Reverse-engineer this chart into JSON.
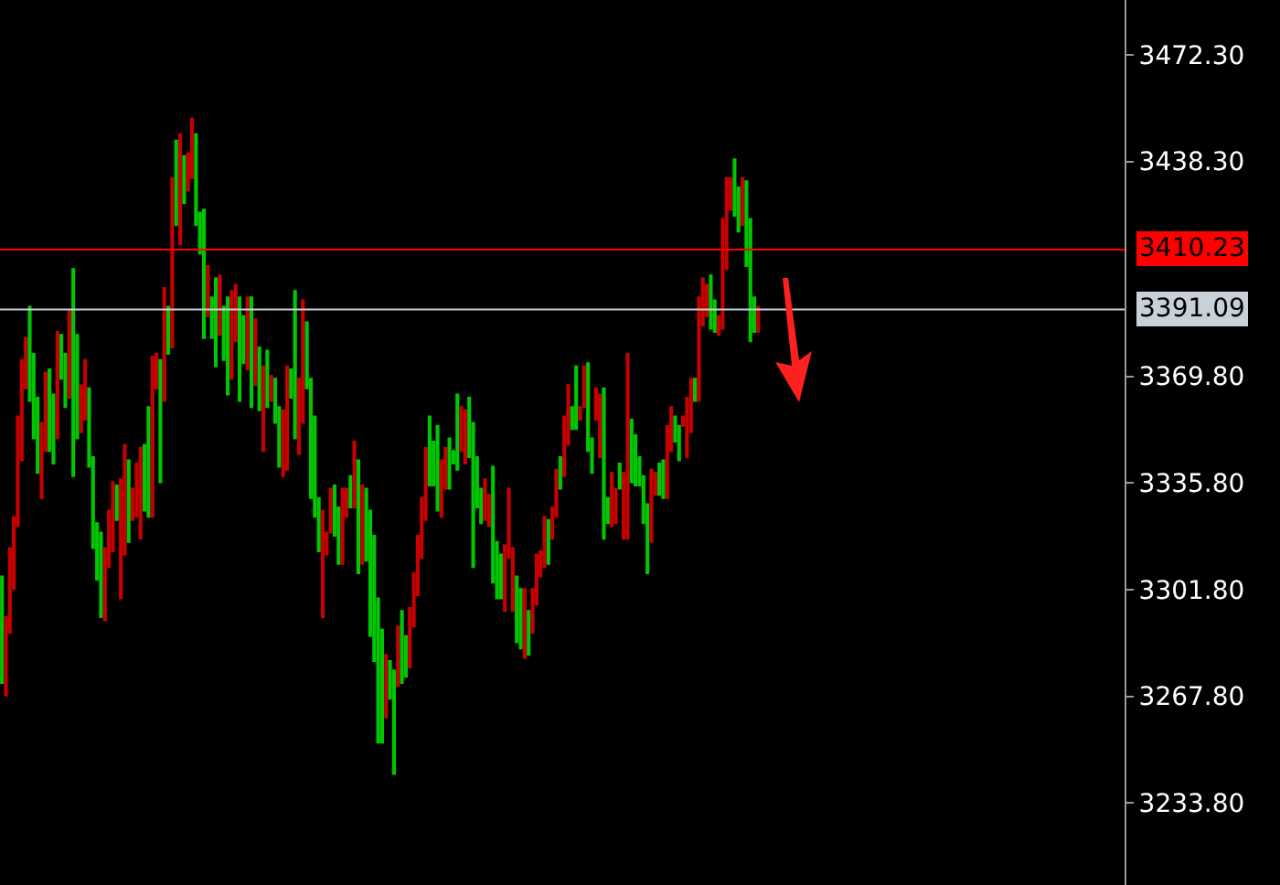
{
  "chart_data": {
    "type": "candlestick",
    "categories": [
      null,
      null,
      null,
      null,
      null,
      null,
      null,
      null,
      null,
      null,
      null,
      null,
      null,
      null,
      null,
      null,
      null,
      null,
      null,
      null,
      null,
      null,
      null,
      null,
      null,
      null,
      null,
      null,
      null,
      null,
      null,
      null,
      null,
      null,
      null,
      null,
      null,
      null,
      null,
      null,
      null,
      null,
      null,
      null,
      null,
      null,
      null,
      null,
      null,
      null,
      null,
      null,
      null,
      null,
      null,
      null,
      null,
      null,
      null,
      null,
      null,
      null,
      null,
      null,
      null,
      null,
      null,
      null,
      null,
      null,
      null,
      null,
      null,
      null,
      null,
      null,
      null,
      null,
      null,
      null,
      null,
      null,
      null,
      null,
      null,
      null,
      null,
      null,
      null,
      null,
      null,
      null,
      null,
      null,
      null,
      null,
      null,
      null,
      null,
      null,
      null,
      null,
      null,
      null,
      null,
      null,
      null,
      null,
      null,
      null,
      null,
      null,
      null,
      null,
      null,
      null,
      null,
      null,
      null,
      null,
      null,
      null,
      null,
      null,
      null,
      null,
      null,
      null,
      null,
      null,
      null,
      null,
      null,
      null,
      null,
      null,
      null,
      null,
      null,
      null,
      null,
      null,
      null,
      null,
      null,
      null,
      null,
      null,
      null,
      null,
      null,
      null,
      null,
      null,
      null,
      null,
      null,
      null,
      null,
      null,
      null,
      null,
      null,
      null,
      null,
      null,
      null,
      null,
      null,
      null,
      null,
      null,
      null,
      null,
      null,
      null,
      null,
      null,
      null,
      null,
      null,
      null,
      null,
      null,
      null,
      null,
      null,
      null,
      null,
      null,
      null,
      null,
      null,
      null,
      null,
      null,
      null,
      null,
      null,
      null,
      null,
      null,
      null,
      null,
      null,
      null,
      null,
      null,
      null,
      null,
      null,
      null,
      null,
      null,
      null,
      null,
      null,
      null,
      null,
      null,
      null,
      null,
      null,
      null,
      null,
      null,
      null,
      null,
      null,
      null,
      null,
      null,
      null,
      null,
      null,
      null,
      null,
      null,
      null,
      null,
      null,
      null,
      null,
      null,
      null,
      null,
      null,
      null,
      null,
      null,
      null,
      null,
      null,
      null,
      null,
      null,
      null,
      null,
      null,
      null,
      null,
      null,
      null,
      null,
      null,
      null,
      null,
      null,
      null,
      null,
      null,
      null,
      null,
      null,
      null,
      null,
      null,
      null,
      null,
      null,
      null,
      null,
      null,
      null
    ],
    "ohlc": [
      [
        3272,
        3306,
        3272,
        3306
      ],
      [
        3293,
        3293,
        3268,
        3268
      ],
      [
        3315,
        3315,
        3288,
        3288
      ],
      [
        3325,
        3325,
        3302,
        3302
      ],
      [
        3357,
        3357,
        3322,
        3322
      ],
      [
        3375,
        3375,
        3343,
        3343
      ],
      [
        3382,
        3382,
        3366,
        3366
      ],
      [
        3362,
        3392,
        3362,
        3392
      ],
      [
        3350,
        3377,
        3350,
        3377
      ],
      [
        3339,
        3363,
        3339,
        3363
      ],
      [
        3355,
        3355,
        3331,
        3331
      ],
      [
        3371,
        3371,
        3346,
        3346
      ],
      [
        3346,
        3372,
        3346,
        3372
      ],
      [
        3342,
        3364,
        3342,
        3364
      ],
      [
        3384,
        3384,
        3350,
        3350
      ],
      [
        3369,
        3383,
        3369,
        3383
      ],
      [
        3360,
        3377,
        3360,
        3377
      ],
      [
        3391,
        3391,
        3363,
        3363
      ],
      [
        3338,
        3404,
        3338,
        3404
      ],
      [
        3350,
        3383,
        3350,
        3383
      ],
      [
        3367,
        3367,
        3352,
        3352
      ],
      [
        3375,
        3375,
        3356,
        3356
      ],
      [
        3341,
        3366,
        3341,
        3366
      ],
      [
        3315,
        3344,
        3315,
        3344
      ],
      [
        3305,
        3323,
        3305,
        3323
      ],
      [
        3293,
        3320,
        3293,
        3320
      ],
      [
        3315,
        3315,
        3292,
        3292
      ],
      [
        3327,
        3327,
        3309,
        3309
      ],
      [
        3336,
        3336,
        3314,
        3314
      ],
      [
        3324,
        3335,
        3324,
        3335
      ],
      [
        3337,
        3337,
        3299,
        3299
      ],
      [
        3348,
        3348,
        3313,
        3313
      ],
      [
        3317,
        3343,
        3317,
        3343
      ],
      [
        3334,
        3334,
        3324,
        3324
      ],
      [
        3342,
        3342,
        3325,
        3325
      ],
      [
        3347,
        3347,
        3318,
        3318
      ],
      [
        3327,
        3348,
        3327,
        3348
      ],
      [
        3325,
        3360,
        3325,
        3360
      ],
      [
        3376,
        3376,
        3325,
        3325
      ],
      [
        3377,
        3377,
        3366,
        3366
      ],
      [
        3336,
        3375,
        3336,
        3375
      ],
      [
        3398,
        3398,
        3362,
        3362
      ],
      [
        3377,
        3392,
        3377,
        3392
      ],
      [
        3433,
        3433,
        3379,
        3379
      ],
      [
        3418,
        3445,
        3418,
        3445
      ],
      [
        3447,
        3447,
        3412,
        3412
      ],
      [
        3425,
        3440,
        3425,
        3440
      ],
      [
        3441,
        3441,
        3429,
        3429
      ],
      [
        3452,
        3452,
        3433,
        3433
      ],
      [
        3418,
        3447,
        3418,
        3447
      ],
      [
        3409,
        3422,
        3409,
        3422
      ],
      [
        3382,
        3423,
        3382,
        3423
      ],
      [
        3405,
        3405,
        3389,
        3389
      ],
      [
        3382,
        3395,
        3382,
        3395
      ],
      [
        3373,
        3401,
        3373,
        3401
      ],
      [
        3402,
        3402,
        3383,
        3383
      ],
      [
        3375,
        3392,
        3375,
        3392
      ],
      [
        3364,
        3395,
        3364,
        3395
      ],
      [
        3397,
        3397,
        3369,
        3369
      ],
      [
        3399,
        3399,
        3381,
        3381
      ],
      [
        3362,
        3395,
        3362,
        3395
      ],
      [
        3374,
        3389,
        3374,
        3389
      ],
      [
        3395,
        3395,
        3372,
        3372
      ],
      [
        3360,
        3395,
        3360,
        3395
      ],
      [
        3388,
        3388,
        3367,
        3367
      ],
      [
        3359,
        3379,
        3359,
        3379
      ],
      [
        3373,
        3373,
        3346,
        3346
      ],
      [
        3360,
        3378,
        3360,
        3378
      ],
      [
        3370,
        3370,
        3362,
        3362
      ],
      [
        3355,
        3369,
        3355,
        3369
      ],
      [
        3341,
        3360,
        3341,
        3360
      ],
      [
        3359,
        3359,
        3338,
        3338
      ],
      [
        3373,
        3373,
        3340,
        3340
      ],
      [
        3363,
        3372,
        3363,
        3372
      ],
      [
        3350,
        3397,
        3350,
        3397
      ],
      [
        3369,
        3369,
        3345,
        3345
      ],
      [
        3394,
        3394,
        3355,
        3355
      ],
      [
        3366,
        3387,
        3366,
        3387
      ],
      [
        3331,
        3369,
        3331,
        3369
      ],
      [
        3325,
        3357,
        3325,
        3357
      ],
      [
        3314,
        3331,
        3314,
        3331
      ],
      [
        3327,
        3327,
        3293,
        3293
      ],
      [
        3320,
        3320,
        3313,
        3313
      ],
      [
        3334,
        3334,
        3320,
        3320
      ],
      [
        3319,
        3335,
        3319,
        3335
      ],
      [
        3310,
        3328,
        3310,
        3328
      ],
      [
        3334,
        3334,
        3310,
        3310
      ],
      [
        3334,
        3334,
        3325,
        3325
      ],
      [
        3328,
        3338,
        3328,
        3338
      ],
      [
        3349,
        3349,
        3328,
        3328
      ],
      [
        3307,
        3343,
        3307,
        3343
      ],
      [
        3335,
        3335,
        3310,
        3310
      ],
      [
        3311,
        3334,
        3311,
        3334
      ],
      [
        3287,
        3327,
        3287,
        3327
      ],
      [
        3279,
        3319,
        3279,
        3319
      ],
      [
        3253,
        3299,
        3253,
        3299
      ],
      [
        3253,
        3289,
        3253,
        3289
      ],
      [
        3281,
        3281,
        3261,
        3261
      ],
      [
        3267,
        3279,
        3267,
        3279
      ],
      [
        3243,
        3276,
        3243,
        3276
      ],
      [
        3290,
        3290,
        3271,
        3271
      ],
      [
        3272,
        3295,
        3272,
        3295
      ],
      [
        3274,
        3287,
        3274,
        3287
      ],
      [
        3296,
        3296,
        3277,
        3277
      ],
      [
        3307,
        3307,
        3290,
        3290
      ],
      [
        3319,
        3319,
        3300,
        3300
      ],
      [
        3331,
        3331,
        3312,
        3312
      ],
      [
        3347,
        3347,
        3324,
        3324
      ],
      [
        3335,
        3357,
        3335,
        3357
      ],
      [
        3335,
        3349,
        3335,
        3349
      ],
      [
        3327,
        3354,
        3327,
        3354
      ],
      [
        3343,
        3343,
        3325,
        3325
      ],
      [
        3347,
        3347,
        3334,
        3334
      ],
      [
        3334,
        3350,
        3334,
        3350
      ],
      [
        3342,
        3346,
        3342,
        3346
      ],
      [
        3340,
        3364,
        3340,
        3364
      ],
      [
        3360,
        3360,
        3346,
        3346
      ],
      [
        3359,
        3359,
        3342,
        3342
      ],
      [
        3344,
        3363,
        3344,
        3363
      ],
      [
        3309,
        3355,
        3309,
        3355
      ],
      [
        3328,
        3344,
        3328,
        3344
      ],
      [
        3323,
        3334,
        3323,
        3334
      ],
      [
        3337,
        3337,
        3324,
        3324
      ],
      [
        3332,
        3332,
        3322,
        3322
      ],
      [
        3304,
        3341,
        3304,
        3341
      ],
      [
        3299,
        3317,
        3299,
        3317
      ],
      [
        3299,
        3313,
        3299,
        3313
      ],
      [
        3316,
        3316,
        3295,
        3295
      ],
      [
        3334,
        3334,
        3312,
        3312
      ],
      [
        3315,
        3315,
        3295,
        3295
      ],
      [
        3285,
        3306,
        3285,
        3306
      ],
      [
        3283,
        3302,
        3283,
        3302
      ],
      [
        3302,
        3302,
        3280,
        3280
      ],
      [
        3281,
        3295,
        3281,
        3295
      ],
      [
        3302,
        3302,
        3288,
        3288
      ],
      [
        3313,
        3313,
        3297,
        3297
      ],
      [
        3314,
        3314,
        3306,
        3306
      ],
      [
        3325,
        3325,
        3309,
        3309
      ],
      [
        3310,
        3324,
        3310,
        3324
      ],
      [
        3328,
        3328,
        3318,
        3318
      ],
      [
        3340,
        3340,
        3325,
        3325
      ],
      [
        3334,
        3344,
        3334,
        3344
      ],
      [
        3357,
        3357,
        3338,
        3338
      ],
      [
        3367,
        3367,
        3348,
        3348
      ],
      [
        3353,
        3360,
        3353,
        3360
      ],
      [
        3353,
        3373,
        3353,
        3373
      ],
      [
        3360,
        3360,
        3356,
        3356
      ],
      [
        3373,
        3373,
        3360,
        3360
      ],
      [
        3346,
        3374,
        3346,
        3374
      ],
      [
        3339,
        3350,
        3339,
        3350
      ],
      [
        3366,
        3366,
        3356,
        3356
      ],
      [
        3364,
        3364,
        3344,
        3344
      ],
      [
        3318,
        3366,
        3318,
        3366
      ],
      [
        3323,
        3331,
        3323,
        3331
      ],
      [
        3339,
        3339,
        3322,
        3322
      ],
      [
        3334,
        3334,
        3323,
        3323
      ],
      [
        3334,
        3342,
        3334,
        3342
      ],
      [
        3339,
        3339,
        3318,
        3318
      ],
      [
        3377,
        3377,
        3318,
        3318
      ],
      [
        3336,
        3356,
        3336,
        3356
      ],
      [
        3335,
        3351,
        3335,
        3351
      ],
      [
        3335,
        3344,
        3335,
        3344
      ],
      [
        3323,
        3338,
        3323,
        3338
      ],
      [
        3307,
        3329,
        3307,
        3329
      ],
      [
        3340,
        3340,
        3317,
        3317
      ],
      [
        3339,
        3339,
        3332,
        3332
      ],
      [
        3332,
        3342,
        3332,
        3342
      ],
      [
        3331,
        3343,
        3331,
        3343
      ],
      [
        3354,
        3354,
        3331,
        3331
      ],
      [
        3360,
        3360,
        3346,
        3346
      ],
      [
        3349,
        3357,
        3349,
        3357
      ],
      [
        3343,
        3354,
        3343,
        3354
      ],
      [
        3357,
        3357,
        3354,
        3354
      ],
      [
        3363,
        3363,
        3344,
        3344
      ],
      [
        3369,
        3369,
        3352,
        3352
      ],
      [
        3362,
        3369,
        3362,
        3369
      ],
      [
        3395,
        3395,
        3362,
        3362
      ],
      [
        3401,
        3401,
        3386,
        3386
      ],
      [
        3399,
        3399,
        3389,
        3389
      ],
      [
        3385,
        3402,
        3385,
        3402
      ],
      [
        3384,
        3394,
        3384,
        3394
      ],
      [
        3389,
        3389,
        3383,
        3383
      ],
      [
        3420,
        3420,
        3385,
        3385
      ],
      [
        3433,
        3433,
        3404,
        3404
      ],
      [
        3433,
        3433,
        3423,
        3423
      ],
      [
        3421,
        3439,
        3421,
        3439
      ],
      [
        3416,
        3430,
        3416,
        3430
      ],
      [
        3433,
        3433,
        3418,
        3418
      ],
      [
        3405,
        3432,
        3405,
        3432
      ],
      [
        3381,
        3420,
        3381,
        3420
      ],
      [
        3384,
        3395,
        3384,
        3395
      ],
      [
        3392,
        3392,
        3384,
        3384
      ],
      null,
      null,
      null,
      null,
      null,
      null,
      null,
      null,
      null,
      null,
      null,
      null,
      null,
      null,
      null,
      null,
      null,
      null,
      null,
      null,
      null,
      null,
      null,
      null,
      null,
      null,
      null,
      null,
      null,
      null,
      null,
      null,
      null,
      null,
      null,
      null,
      null,
      null,
      null,
      null,
      null,
      null,
      null,
      null,
      null,
      null,
      null,
      null,
      null,
      null,
      null,
      null,
      null,
      null,
      null,
      null,
      null,
      null,
      null,
      null,
      null,
      null,
      null,
      null,
      null,
      null,
      null,
      null,
      null,
      null,
      null,
      null,
      null,
      null,
      null,
      null,
      null,
      null,
      null,
      null,
      null,
      null,
      null,
      null,
      null,
      null,
      null,
      null,
      null,
      null,
      null,
      null
    ],
    "ylim": [
      3207.6,
      3489.8
    ],
    "yticks": [
      {
        "value": 3233.8,
        "label": "3233.80"
      },
      {
        "value": 3267.8,
        "label": "3267.80"
      },
      {
        "value": 3301.8,
        "label": "3301.80"
      },
      {
        "value": 3335.8,
        "label": "3335.80"
      },
      {
        "value": 3369.8,
        "label": "3369.80"
      },
      {
        "value": 3438.3,
        "label": "3438.30"
      },
      {
        "value": 3472.3,
        "label": "3472.30"
      }
    ],
    "ref_lines": [
      {
        "axis": "y",
        "value": 3410.23,
        "label": "3410.23",
        "color": "#ff0000"
      },
      {
        "axis": "y",
        "value": 3391.09,
        "label": "3391.09",
        "color": "#c8d0d8"
      }
    ],
    "grid": false,
    "legend": false
  }
}
